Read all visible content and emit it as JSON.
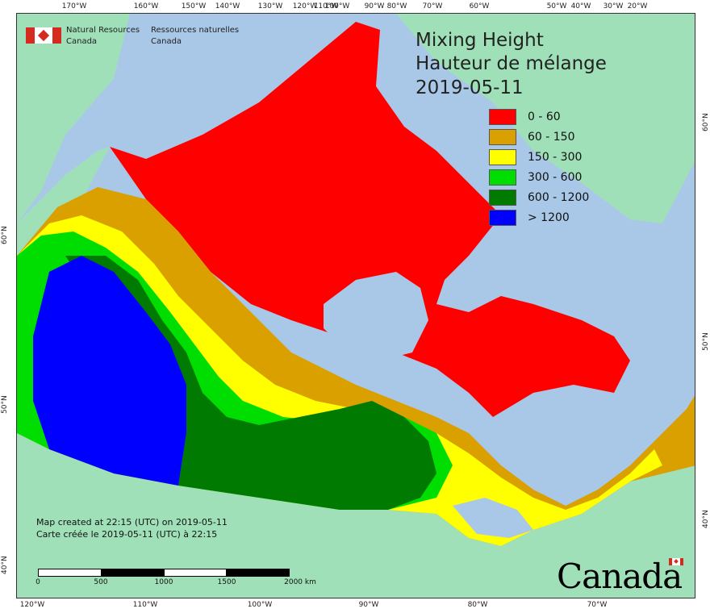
{
  "map": {
    "title_en": "Mixing Height",
    "title_fr": "Hauteur de mélange",
    "date": "2019-05-11",
    "colors": {
      "ocean": "#a9c8e8",
      "foreign_land": "#9fe0b8",
      "border": "#333333"
    }
  },
  "legend": [
    {
      "label": "0 - 60",
      "color": "#ff0000"
    },
    {
      "label": "60 - 150",
      "color": "#d9a000"
    },
    {
      "label": "150 - 300",
      "color": "#ffff00"
    },
    {
      "label": "300 - 600",
      "color": "#00dd00"
    },
    {
      "label": "600 - 1200",
      "color": "#007a00"
    },
    {
      "label": "> 1200",
      "color": "#0000ff"
    }
  ],
  "agency": {
    "en_line1": "Natural Resources",
    "en_line2": "Canada",
    "fr_line1": "Ressources naturelles",
    "fr_line2": "Canada",
    "flag_icon": "canada-flag-icon"
  },
  "credit": {
    "en": "Map created at 22:15 (UTC) on 2019-05-11",
    "fr": "Carte créée le 2019-05-11 (UTC) à 22:15"
  },
  "scale_bar": {
    "labels": [
      "0",
      "500",
      "1000",
      "1500",
      "2000 km"
    ]
  },
  "graticule": {
    "top": [
      "170°W",
      "160°W",
      "150°W",
      "140°W",
      "130°W",
      "120°W",
      "110°W",
      "100°W",
      "90°W",
      "80°W",
      "70°W",
      "60°W",
      "50°W",
      "40°W",
      "30°W",
      "20°W"
    ],
    "bottom": [
      "120°W",
      "110°W",
      "100°W",
      "90°W",
      "80°W",
      "70°W"
    ],
    "left": [
      "60°N",
      "50°N",
      "40°N"
    ],
    "right": [
      "60°N",
      "50°N",
      "40°N"
    ]
  },
  "wordmark": "Canada"
}
